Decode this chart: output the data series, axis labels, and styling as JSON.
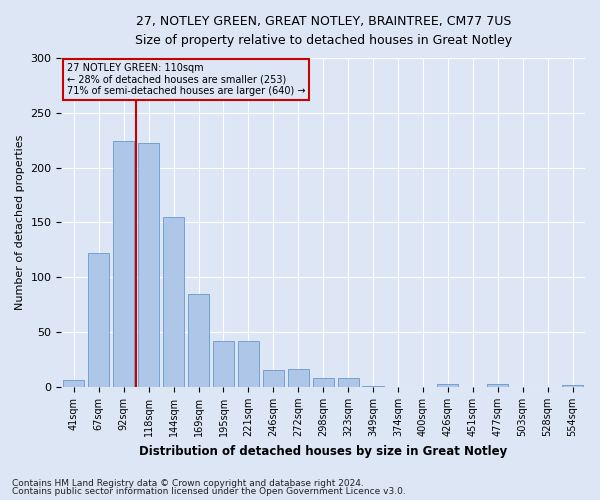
{
  "title1": "27, NOTLEY GREEN, GREAT NOTLEY, BRAINTREE, CM77 7US",
  "title2": "Size of property relative to detached houses in Great Notley",
  "xlabel": "Distribution of detached houses by size in Great Notley",
  "ylabel": "Number of detached properties",
  "footer1": "Contains HM Land Registry data © Crown copyright and database right 2024.",
  "footer2": "Contains public sector information licensed under the Open Government Licence v3.0.",
  "property_label": "27 NOTLEY GREEN: 110sqm",
  "annotation_line1": "← 28% of detached houses are smaller (253)",
  "annotation_line2": "71% of semi-detached houses are larger (640) →",
  "bin_labels": [
    "41sqm",
    "67sqm",
    "92sqm",
    "118sqm",
    "144sqm",
    "169sqm",
    "195sqm",
    "221sqm",
    "246sqm",
    "272sqm",
    "298sqm",
    "323sqm",
    "349sqm",
    "374sqm",
    "400sqm",
    "426sqm",
    "451sqm",
    "477sqm",
    "503sqm",
    "528sqm",
    "554sqm"
  ],
  "bar_values": [
    6,
    122,
    224,
    222,
    155,
    85,
    42,
    42,
    15,
    16,
    8,
    8,
    1,
    0,
    0,
    3,
    0,
    3,
    0,
    0,
    2
  ],
  "bar_color": "#aec6e8",
  "bar_edge_color": "#6699cc",
  "vline_bin": 2,
  "vline_color": "#cc0000",
  "ylim": [
    0,
    300
  ],
  "yticks": [
    0,
    50,
    100,
    150,
    200,
    250,
    300
  ],
  "annotation_box_color": "#cc0000",
  "background_color": "#dce6f5",
  "plot_bg_color": "#dce6f5",
  "grid_color": "#ffffff",
  "title1_fontsize": 9,
  "title2_fontsize": 8.5,
  "xlabel_fontsize": 8.5,
  "ylabel_fontsize": 8,
  "tick_fontsize": 7,
  "footer_fontsize": 6.5
}
